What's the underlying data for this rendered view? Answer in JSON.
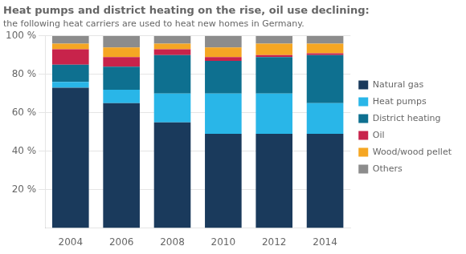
{
  "chart_data": {
    "type": "bar",
    "stacked": true,
    "title": "Heat pumps and district heating on the rise, oil use declining:",
    "subtitle": "the following heat carriers are used to heat new homes in Germany.",
    "categories": [
      "2004",
      "2006",
      "2008",
      "2010",
      "2012",
      "2014"
    ],
    "series": [
      {
        "name": "Natural gas",
        "color": "#1a3a5c",
        "values": [
          73,
          65,
          55,
          49,
          49,
          49
        ]
      },
      {
        "name": "Heat pumps",
        "color": "#29b6e8",
        "values": [
          3,
          7,
          15,
          21,
          21,
          16
        ]
      },
      {
        "name": "District heating",
        "color": "#0e7090",
        "values": [
          9,
          12,
          20,
          17,
          19,
          25
        ]
      },
      {
        "name": "Oil",
        "color": "#c8234b",
        "values": [
          8,
          5,
          3,
          2,
          1,
          1
        ]
      },
      {
        "name": "Wood/wood pellet",
        "color": "#f5a623",
        "values": [
          3,
          5,
          3,
          5,
          6,
          5
        ]
      },
      {
        "name": "Others",
        "color": "#8c8c8c",
        "values": [
          4,
          6,
          4,
          6,
          4,
          4
        ]
      }
    ],
    "ylim": [
      0,
      100
    ],
    "yticks": [
      {
        "value": 20,
        "label": "20 %"
      },
      {
        "value": 40,
        "label": "40 %"
      },
      {
        "value": 60,
        "label": "60 %"
      },
      {
        "value": 80,
        "label": "80 %"
      },
      {
        "value": 100,
        "label": "100 %"
      }
    ],
    "grid": true,
    "legend": "right"
  }
}
